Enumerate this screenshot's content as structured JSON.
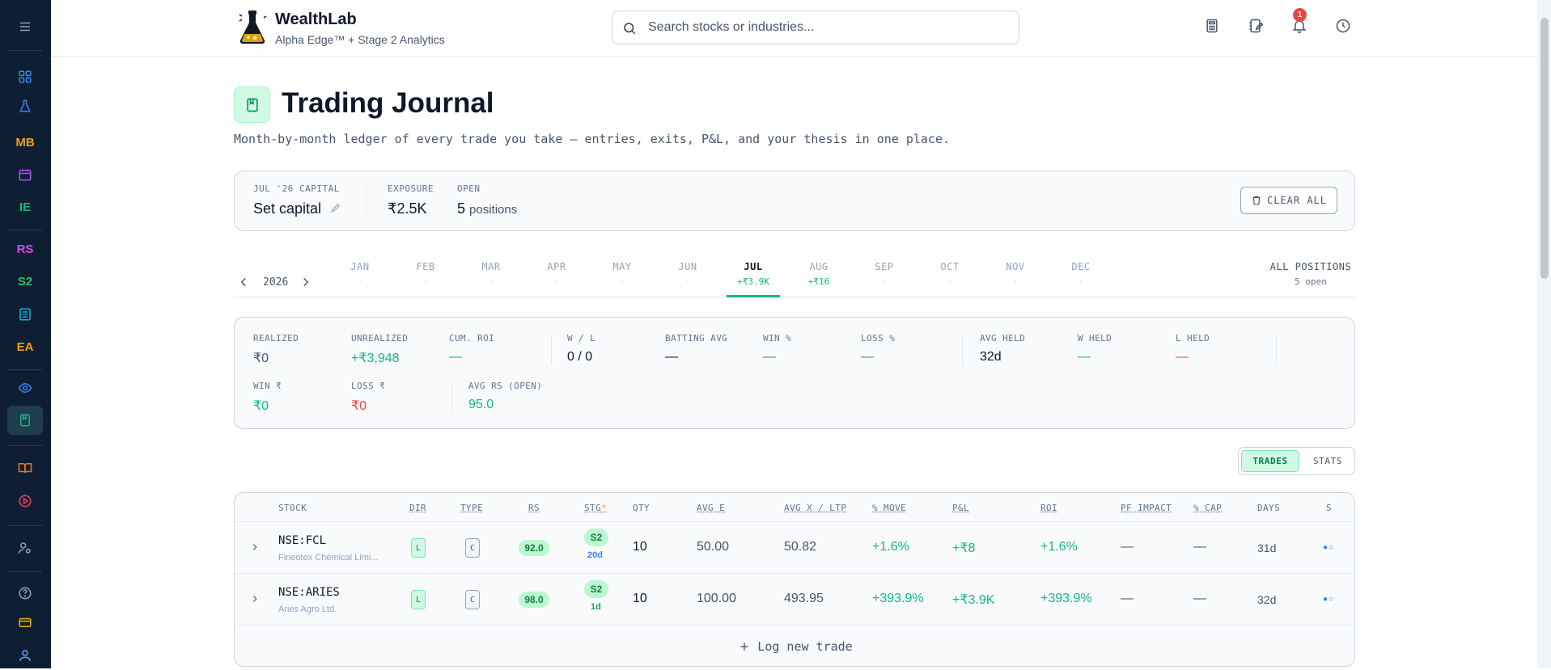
{
  "colors": {
    "sidebar_bg": "#0f1f33",
    "accent": "#10b981",
    "negative": "#ef4444",
    "brand_blue": "#3b82f6"
  },
  "sidebar": {
    "items": [
      {
        "label": "",
        "icon": "menu-icon"
      },
      {
        "label": "",
        "icon": "dashboard-icon"
      },
      {
        "label": "",
        "icon": "flask-icon"
      },
      {
        "label": "MB",
        "icon": ""
      },
      {
        "label": "",
        "icon": "calendar-icon"
      },
      {
        "label": "IE",
        "icon": ""
      },
      {
        "label": "RS",
        "icon": ""
      },
      {
        "label": "S2",
        "icon": ""
      },
      {
        "label": "",
        "icon": "building-icon"
      },
      {
        "label": "EA",
        "icon": ""
      },
      {
        "label": "",
        "icon": "eye-icon"
      },
      {
        "label": "",
        "icon": "journal-icon"
      },
      {
        "label": "",
        "icon": "book-icon"
      },
      {
        "label": "",
        "icon": "play-icon"
      },
      {
        "label": "",
        "icon": "user-settings-icon"
      },
      {
        "label": "",
        "icon": "help-icon"
      },
      {
        "label": "",
        "icon": "card-icon"
      },
      {
        "label": "",
        "icon": "user-icon"
      }
    ]
  },
  "header": {
    "brand_name": "WealthLab",
    "brand_sub": "Alpha Edge™ + Stage 2 Analytics",
    "search_placeholder": "Search stocks or industries...",
    "notification_count": "1"
  },
  "page": {
    "title": "Trading Journal",
    "subtitle": "Month-by-month ledger of every trade you take — entries, exits, P&L, and your thesis in one place."
  },
  "capital": {
    "capital_label": "JUL '26 CAPITAL",
    "capital_value": "Set capital",
    "exposure_label": "EXPOSURE",
    "exposure_value": "₹2.5K",
    "open_label": "OPEN",
    "open_value": "5",
    "open_unit": "positions",
    "clear_label": "CLEAR ALL"
  },
  "months": {
    "year": "2026",
    "items": [
      {
        "name": "JAN",
        "value": "·"
      },
      {
        "name": "FEB",
        "value": "·"
      },
      {
        "name": "MAR",
        "value": "·"
      },
      {
        "name": "APR",
        "value": "·"
      },
      {
        "name": "MAY",
        "value": "·"
      },
      {
        "name": "JUN",
        "value": "·"
      },
      {
        "name": "JUL",
        "value": "+₹3.9K"
      },
      {
        "name": "AUG",
        "value": "+₹16"
      },
      {
        "name": "SEP",
        "value": "·"
      },
      {
        "name": "OCT",
        "value": "·"
      },
      {
        "name": "NOV",
        "value": "·"
      },
      {
        "name": "DEC",
        "value": "·"
      }
    ],
    "active": "JUL",
    "all_label": "ALL POSITIONS",
    "all_value": "5 open"
  },
  "stats": {
    "realized": {
      "label": "REALIZED",
      "value": "₹0"
    },
    "unrealized": {
      "label": "UNREALIZED",
      "value": "+₹3,948"
    },
    "cum_roi": {
      "label": "CUM. ROI",
      "value": "—"
    },
    "wl": {
      "label": "W / L",
      "value": "0 / 0"
    },
    "batting": {
      "label": "BATTING AVG",
      "value": "—"
    },
    "win_pct": {
      "label": "WIN %",
      "value": "—"
    },
    "loss_pct": {
      "label": "LOSS %",
      "value": "—"
    },
    "avg_held": {
      "label": "AVG HELD",
      "value": "32d"
    },
    "w_held": {
      "label": "W HELD",
      "value": "—"
    },
    "l_held": {
      "label": "L HELD",
      "value": "—"
    },
    "win_rs": {
      "label": "WIN ₹",
      "value": "₹0"
    },
    "loss_rs": {
      "label": "LOSS ₹",
      "value": "₹0"
    },
    "avg_rs": {
      "label": "AVG RS (OPEN)",
      "value": "95.0"
    }
  },
  "toggle": {
    "trades": "TRADES",
    "stats": "STATS"
  },
  "table": {
    "headers": {
      "stock": "STOCK",
      "dir": "DIR",
      "type": "TYPE",
      "rs": "RS",
      "stg": "STG",
      "stg_mark": "*",
      "qty": "QTY",
      "avg_e": "AVG E",
      "avg_x": "AVG X / LTP",
      "move": "% MOVE",
      "pnl": "P&L",
      "roi": "ROI",
      "pf": "PF IMPACT",
      "cap": "% CAP",
      "days": "DAYS",
      "s": "S"
    },
    "rows": [
      {
        "symbol": "NSE:FCL",
        "company": "Fineotex Chemical Limi...",
        "dir": "L",
        "type": "C",
        "rs": "92.0",
        "stg": "S2",
        "stg_days": "20d",
        "qty": "10",
        "avg_e": "50.00",
        "avg_x": "50.82",
        "move": "+1.6%",
        "pnl": "+₹8",
        "roi": "+1.6%",
        "pf": "—",
        "cap": "—",
        "days": "31d",
        "s": "●○"
      },
      {
        "symbol": "NSE:ARIES",
        "company": "Aries Agro Ltd.",
        "dir": "L",
        "type": "C",
        "rs": "98.0",
        "stg": "S2",
        "stg_days": "1d",
        "qty": "10",
        "avg_e": "100.00",
        "avg_x": "493.95",
        "move": "+393.9%",
        "pnl": "+₹3.9K",
        "roi": "+393.9%",
        "pf": "—",
        "cap": "—",
        "days": "32d",
        "s": "●○"
      }
    ],
    "log_label": "Log new trade"
  }
}
